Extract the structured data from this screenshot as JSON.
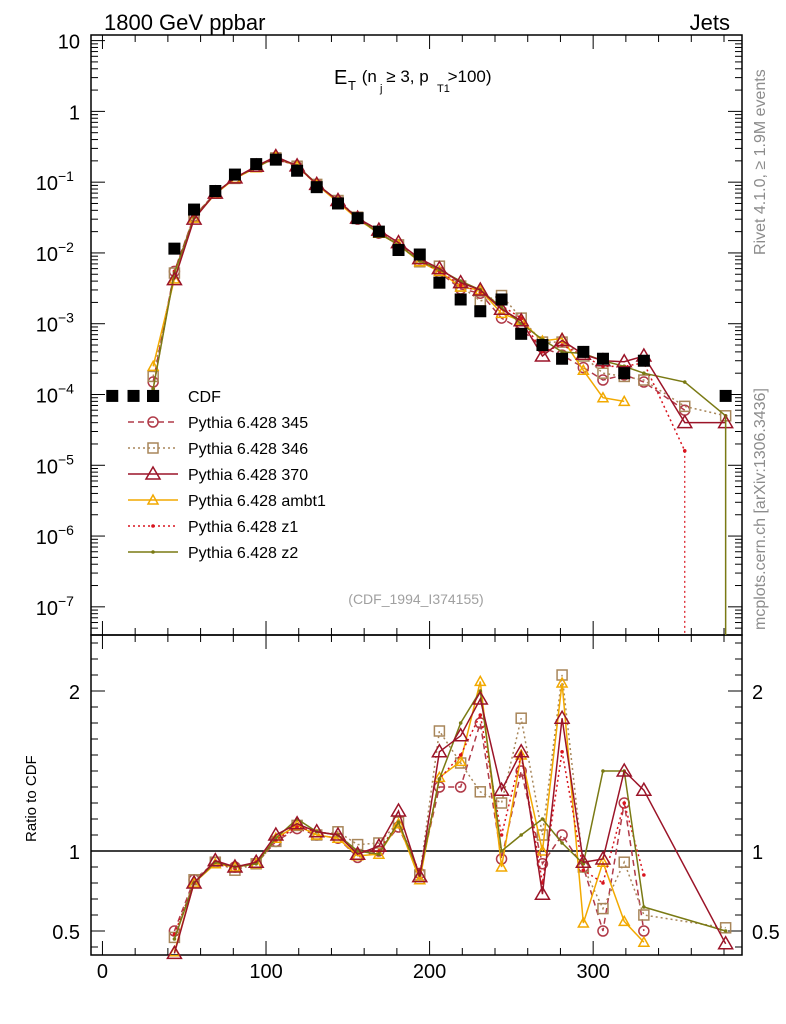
{
  "header": {
    "left_title": "1800 GeV ppbar",
    "right_title": "Jets",
    "plot_title_main": "E",
    "plot_title_sub": "T",
    "plot_title_rest": " (n  ≥ 3, p    >100)",
    "plot_title_nj": "j",
    "plot_title_pt": "T1",
    "analysis_id": "(CDF_1994_I374155)",
    "side_rivet": "Rivet 4.1.0, ≥ 1.9M events",
    "side_mcplots": "mcplots.cern.ch [arXiv:1306.3436]",
    "ratio_ylabel": "Ratio to CDF"
  },
  "colors": {
    "cdf": "#000000",
    "p345": "#b03a48",
    "p346": "#a8865a",
    "p370": "#9b1428",
    "ambt1": "#f2a900",
    "z1": "#d8141e",
    "z2": "#7a7a14"
  },
  "chart_data": [
    {
      "type": "scatter",
      "title": "E_T (n_j ≥ 3, p_T1 > 100)",
      "xlabel": "",
      "ylabel": "",
      "yscale": "log",
      "xlim": [
        -7,
        391
      ],
      "ylim": [
        4e-08,
        12
      ],
      "y_ticks": [
        {
          "value": 10,
          "label": "10"
        },
        {
          "value": 1,
          "label": "1"
        },
        {
          "value": 0.1,
          "label": "10",
          "exp": "−1"
        },
        {
          "value": 0.01,
          "label": "10",
          "exp": "−2"
        },
        {
          "value": 0.001,
          "label": "10",
          "exp": "−3"
        },
        {
          "value": 0.0001,
          "label": "10",
          "exp": "−4"
        },
        {
          "value": 1e-05,
          "label": "10",
          "exp": "−5"
        },
        {
          "value": 1e-06,
          "label": "10",
          "exp": "−6"
        },
        {
          "value": 1e-07,
          "label": "10",
          "exp": "−7"
        }
      ],
      "legend_position": "left-middle",
      "series": [
        {
          "name": "CDF",
          "marker": "filled-square",
          "x": [
            6,
            19,
            31,
            44,
            56,
            69,
            81,
            94,
            106,
            119,
            131,
            144,
            156,
            169,
            181,
            194,
            206,
            219,
            231,
            244,
            256,
            269,
            281,
            294,
            306,
            319,
            331,
            381
          ],
          "y": [
            9.55e-05,
            9.55e-05,
            9.55e-05,
            0.0115,
            0.041,
            0.075,
            0.128,
            0.18,
            0.208,
            0.145,
            0.085,
            0.05,
            0.031,
            0.02,
            0.011,
            0.0095,
            0.0038,
            0.0022,
            0.0015,
            0.0022,
            0.00072,
            0.0005,
            0.00032,
            0.0004,
            0.00032,
            0.0002,
            0.0003,
            9.55e-05
          ]
        },
        {
          "name": "Pythia 6.428 345",
          "marker": "open-circle",
          "line": "dashed",
          "x": [
            31,
            44,
            56,
            69,
            81,
            94,
            106,
            119,
            131,
            144,
            156,
            169,
            181,
            194,
            206,
            219,
            231,
            244,
            256,
            269,
            281,
            294,
            306,
            319,
            331,
            356
          ],
          "y": [
            0.00015,
            0.0055,
            0.033,
            0.07,
            0.115,
            0.165,
            0.22,
            0.165,
            0.093,
            0.054,
            0.03,
            0.019,
            0.013,
            0.0082,
            0.0053,
            0.0031,
            0.0027,
            0.0012,
            0.00083,
            0.00046,
            0.00036,
            0.00024,
            0.00016,
            0.00019,
            0.00015,
            6e-05
          ]
        },
        {
          "name": "Pythia 6.428 346",
          "marker": "open-square",
          "line": "dotted",
          "x": [
            31,
            44,
            56,
            69,
            81,
            94,
            106,
            119,
            131,
            144,
            156,
            169,
            181,
            194,
            206,
            219,
            231,
            244,
            256,
            269,
            281,
            294,
            306,
            319,
            331,
            356,
            381
          ],
          "y": [
            0.00018,
            0.0052,
            0.033,
            0.07,
            0.113,
            0.165,
            0.22,
            0.168,
            0.093,
            0.055,
            0.032,
            0.02,
            0.013,
            0.0075,
            0.0065,
            0.0034,
            0.0021,
            0.0025,
            0.0012,
            0.00055,
            0.00055,
            0.00035,
            0.0002,
            0.00018,
            0.00016,
            6.8e-05,
            5e-05
          ]
        },
        {
          "name": "Pythia 6.428 370",
          "marker": "open-triangle",
          "line": "solid",
          "x": [
            44,
            56,
            69,
            81,
            94,
            106,
            119,
            131,
            144,
            156,
            169,
            181,
            194,
            206,
            219,
            231,
            244,
            256,
            269,
            281,
            294,
            306,
            319,
            331,
            356,
            381
          ],
          "y": [
            0.0042,
            0.03,
            0.07,
            0.115,
            0.168,
            0.23,
            0.17,
            0.093,
            0.055,
            0.031,
            0.021,
            0.014,
            0.0083,
            0.006,
            0.0038,
            0.003,
            0.0016,
            0.0011,
            0.00035,
            0.00058,
            0.00037,
            0.0003,
            0.00029,
            0.00035,
            4e-05,
            4e-05
          ]
        },
        {
          "name": "Pythia 6.428 ambt1",
          "marker": "open-triangle-small",
          "line": "solid",
          "x": [
            31,
            44,
            56,
            69,
            81,
            94,
            106,
            119,
            131,
            144,
            156,
            169,
            181,
            194,
            206,
            219,
            231,
            244,
            256,
            269,
            281,
            294,
            306,
            319
          ],
          "y": [
            0.00025,
            0.0043,
            0.031,
            0.068,
            0.113,
            0.16,
            0.225,
            0.168,
            0.092,
            0.052,
            0.03,
            0.019,
            0.013,
            0.0075,
            0.0055,
            0.0033,
            0.003,
            0.0014,
            0.0011,
            0.00057,
            0.00062,
            0.00022,
            9e-05,
            8e-05
          ]
        },
        {
          "name": "Pythia 6.428 z1",
          "marker": "dot",
          "line": "dotted",
          "x": [
            31,
            44,
            56,
            69,
            81,
            94,
            106,
            119,
            131,
            144,
            156,
            169,
            181,
            194,
            206,
            219,
            231,
            244,
            256,
            269,
            281,
            294,
            306,
            319,
            331,
            356
          ],
          "y": [
            0.00012,
            0.0055,
            0.032,
            0.07,
            0.113,
            0.165,
            0.222,
            0.168,
            0.095,
            0.054,
            0.031,
            0.02,
            0.013,
            0.0078,
            0.0055,
            0.0035,
            0.0028,
            0.0018,
            0.0012,
            0.0004,
            0.0005,
            0.00035,
            0.00025,
            0.00025,
            0.00028,
            1.6e-05
          ]
        },
        {
          "name": "Pythia 6.428 z2",
          "marker": "dot",
          "line": "solid",
          "x": [
            31,
            44,
            56,
            69,
            81,
            94,
            106,
            119,
            131,
            144,
            156,
            169,
            181,
            194,
            206,
            219,
            231,
            244,
            256,
            269,
            281,
            294,
            306,
            319,
            331,
            356,
            381
          ],
          "y": [
            0.00012,
            0.0052,
            0.031,
            0.07,
            0.115,
            0.163,
            0.223,
            0.172,
            0.094,
            0.055,
            0.031,
            0.019,
            0.013,
            0.0077,
            0.0058,
            0.004,
            0.003,
            0.0017,
            0.001,
            0.0006,
            0.0004,
            0.00038,
            0.0003,
            0.00025,
            0.0002,
            0.00015,
            5e-05
          ]
        }
      ]
    },
    {
      "type": "line",
      "title": "",
      "xlabel": "",
      "ylabel": "Ratio to CDF",
      "xlim": [
        -7,
        391
      ],
      "ylim": [
        0.35,
        2.35
      ],
      "x_ticks": [
        0,
        100,
        200,
        300
      ],
      "y_ticks": [
        0.5,
        1,
        2
      ],
      "reference_line": 1,
      "series": [
        {
          "name": "Pythia 6.428 345",
          "x": [
            44,
            56,
            69,
            81,
            94,
            106,
            119,
            131,
            144,
            156,
            169,
            181,
            194,
            206,
            219,
            231,
            244,
            256,
            269,
            281,
            294,
            306,
            319,
            331
          ],
          "y": [
            0.5,
            0.82,
            0.93,
            0.9,
            0.92,
            1.06,
            1.14,
            1.1,
            1.08,
            0.96,
            1.0,
            1.15,
            0.86,
            1.4,
            1.4,
            1.8,
            0.95,
            1.5,
            0.92,
            1.1,
            0.9,
            0.5,
            1.3,
            0.5
          ]
        },
        {
          "name": "Pythia 6.428 346",
          "x": [
            44,
            56,
            69,
            81,
            94,
            106,
            119,
            131,
            144,
            156,
            169,
            181,
            194,
            206,
            219,
            231,
            244,
            256,
            269,
            281,
            294,
            306,
            319,
            331,
            381
          ],
          "y": [
            0.46,
            0.82,
            0.93,
            0.88,
            0.92,
            1.06,
            1.16,
            1.1,
            1.12,
            1.04,
            1.05,
            1.18,
            0.85,
            1.75,
            1.55,
            1.37,
            1.3,
            1.83,
            1.1,
            2.1,
            0.9,
            0.64,
            0.93,
            0.6,
            0.52
          ]
        },
        {
          "name": "Pythia 6.428 370",
          "x": [
            44,
            56,
            69,
            81,
            94,
            106,
            119,
            131,
            144,
            156,
            169,
            181,
            194,
            206,
            219,
            231,
            244,
            256,
            269,
            281,
            294,
            306,
            319,
            331,
            381
          ],
          "y": [
            0.36,
            0.8,
            0.94,
            0.9,
            0.93,
            1.1,
            1.17,
            1.12,
            1.1,
            0.98,
            1.03,
            1.25,
            0.84,
            1.62,
            1.72,
            1.95,
            1.38,
            1.62,
            0.73,
            1.83,
            0.93,
            0.95,
            1.5,
            1.38,
            0.42
          ]
        },
        {
          "name": "Pythia 6.428 ambt1",
          "x": [
            44,
            56,
            69,
            81,
            94,
            106,
            119,
            131,
            144,
            156,
            169,
            181,
            194,
            206,
            219,
            231,
            244,
            256,
            269,
            281,
            294,
            306,
            319,
            331
          ],
          "y": [
            0.37,
            0.8,
            0.92,
            0.9,
            0.92,
            1.08,
            1.16,
            1.1,
            1.08,
            0.97,
            0.98,
            1.17,
            0.82,
            1.46,
            1.56,
            2.06,
            0.9,
            1.6,
            1.0,
            2.05,
            0.55,
            0.93,
            0.56,
            0.43
          ]
        },
        {
          "name": "Pythia 6.428 z1",
          "x": [
            44,
            56,
            69,
            81,
            94,
            106,
            119,
            131,
            144,
            156,
            169,
            181,
            194,
            206,
            219,
            231,
            244,
            256,
            269,
            281,
            294,
            306,
            319,
            331
          ],
          "y": [
            0.48,
            0.8,
            0.93,
            0.89,
            0.93,
            1.07,
            1.15,
            1.12,
            1.1,
            1.0,
            1.0,
            1.18,
            0.86,
            1.45,
            1.6,
            1.85,
            1.1,
            1.6,
            0.8,
            1.62,
            0.88,
            0.8,
            1.3,
            0.85
          ]
        },
        {
          "name": "Pythia 6.428 z2",
          "x": [
            44,
            56,
            69,
            81,
            94,
            106,
            119,
            131,
            144,
            156,
            169,
            181,
            194,
            206,
            219,
            231,
            244,
            256,
            269,
            281,
            294,
            306,
            319,
            331,
            381
          ],
          "y": [
            0.45,
            0.8,
            0.93,
            0.9,
            0.92,
            1.08,
            1.2,
            1.12,
            1.1,
            1.0,
            0.98,
            1.18,
            0.85,
            1.45,
            1.8,
            2.0,
            1.0,
            1.1,
            1.2,
            1.05,
            0.92,
            1.5,
            1.5,
            0.65,
            0.5
          ]
        }
      ]
    }
  ]
}
